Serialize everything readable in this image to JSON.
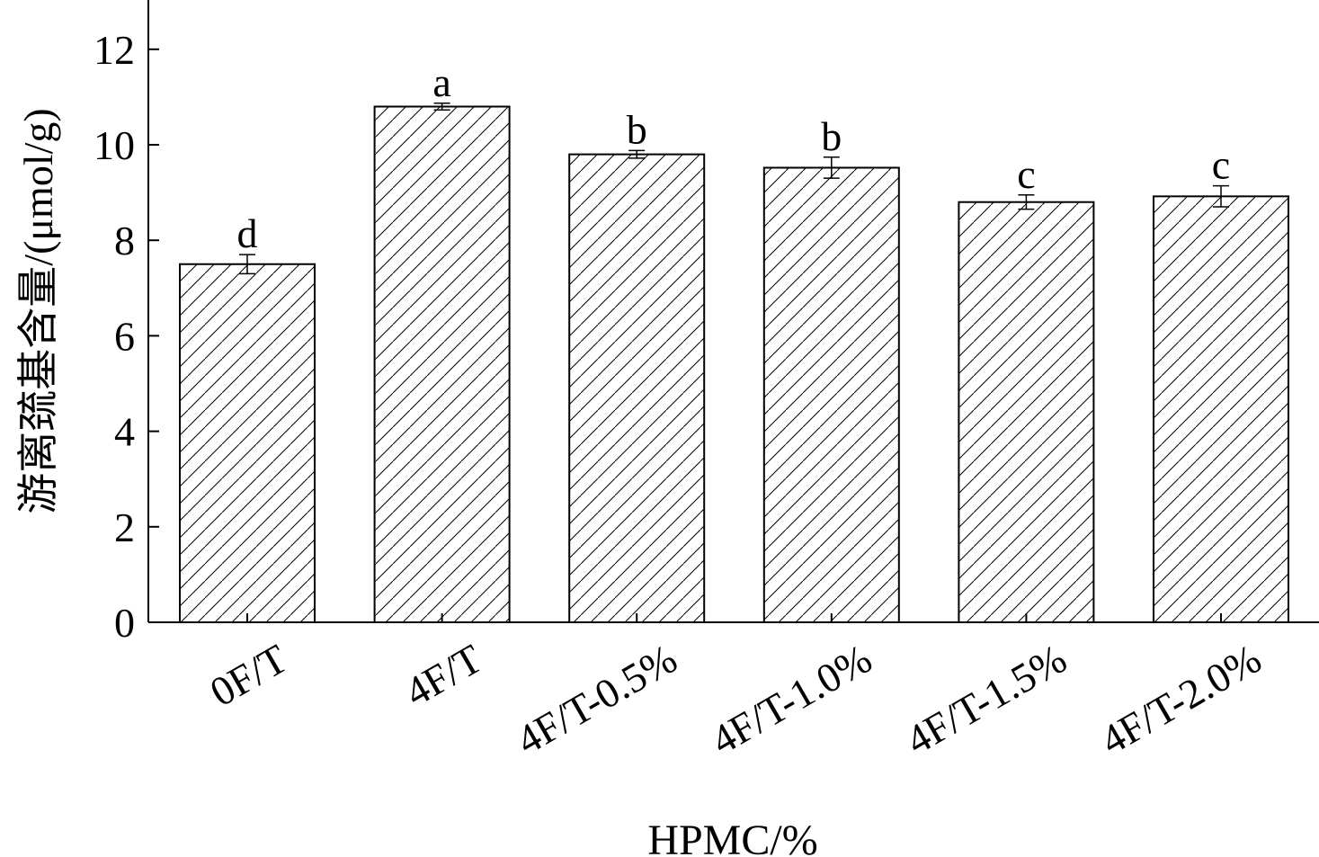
{
  "chart_data": {
    "type": "bar",
    "title": "",
    "xlabel": "HPMC/%",
    "ylabel": "游离巯基含量/(μmol/g)",
    "categories": [
      "0F/T",
      "4F/T",
      "4F/T-0.5%",
      "4F/T-1.0%",
      "4F/T-1.5%",
      "4F/T-2.0%"
    ],
    "values": [
      7.5,
      10.8,
      9.8,
      9.52,
      8.8,
      8.92
    ],
    "errors": [
      0.2,
      0.07,
      0.08,
      0.22,
      0.15,
      0.22
    ],
    "significance": [
      "d",
      "a",
      "b",
      "b",
      "c",
      "c"
    ],
    "ylim": [
      0,
      13
    ],
    "yticks": [
      0,
      2,
      4,
      6,
      8,
      10,
      12
    ],
    "grid": false,
    "legend": "none",
    "bar_fill": "hatched",
    "colors": {
      "bar_edge": "#000000",
      "hatch": "#000000",
      "background": "#ffffff"
    }
  }
}
